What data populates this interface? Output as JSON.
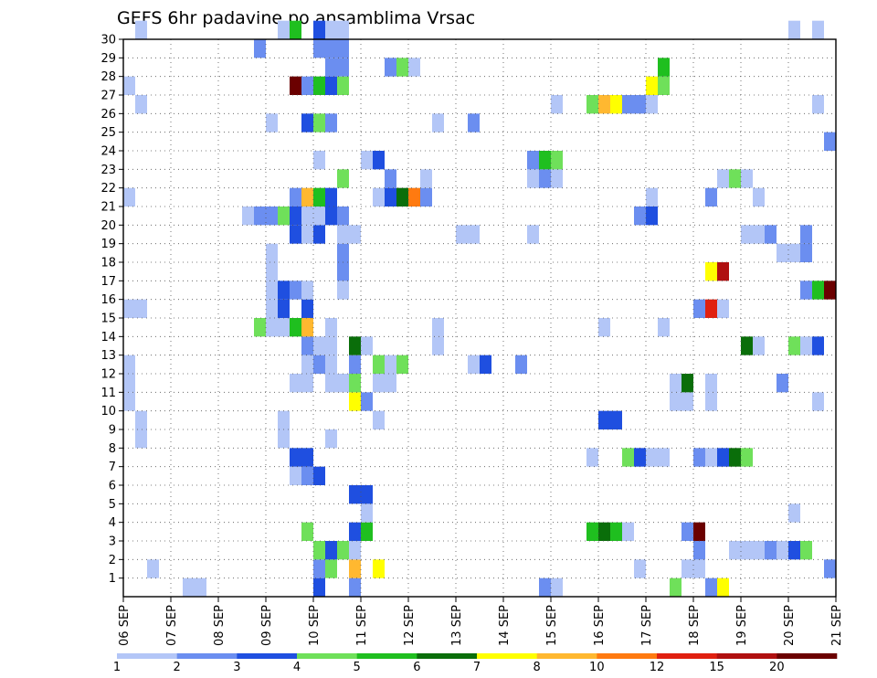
{
  "chart_data": {
    "type": "heatmap",
    "title": "GEFS 6hr padavine po ansamblima Vrsac",
    "xlabel": "",
    "ylabel": "",
    "x_tick_labels": [
      "06 SEP",
      "07 SEP",
      "08 SEP",
      "09 SEP",
      "10 SEP",
      "11 SEP",
      "12 SEP",
      "13 SEP",
      "14 SEP",
      "15 SEP",
      "16 SEP",
      "17 SEP",
      "18 SEP",
      "19 SEP",
      "20 SEP",
      "21 SEP"
    ],
    "x_unit": "6-hour step from 06 SEP",
    "xlim": [
      0,
      60
    ],
    "y_tick_labels": [
      "1",
      "2",
      "3",
      "4",
      "5",
      "6",
      "7",
      "8",
      "9",
      "10",
      "11",
      "12",
      "13",
      "14",
      "15",
      "16",
      "17",
      "18",
      "19",
      "20",
      "21",
      "22",
      "23",
      "24",
      "25",
      "26",
      "27",
      "28",
      "29",
      "30"
    ],
    "ylim": [
      0,
      30
    ],
    "grid": true,
    "colorbar": {
      "labels": [
        "1",
        "2",
        "3",
        "4",
        "5",
        "6",
        "7",
        "8",
        "10",
        "12",
        "15",
        "20"
      ],
      "colors": [
        "#b3c6f7",
        "#6b8ef0",
        "#1f4fe0",
        "#6fe05a",
        "#1fbf1f",
        "#0a6e0a",
        "#ffff00",
        "#ffb830",
        "#ff7a10",
        "#e02010",
        "#b01010",
        "#6b0000"
      ]
    },
    "cells": [
      [
        5,
        0,
        0
      ],
      [
        6,
        0,
        0
      ],
      [
        16,
        0,
        2
      ],
      [
        19,
        0,
        1
      ],
      [
        35,
        0,
        1
      ],
      [
        36,
        0,
        0
      ],
      [
        46,
        0,
        3
      ],
      [
        49,
        0,
        1
      ],
      [
        50,
        0,
        6
      ],
      [
        2,
        1,
        0
      ],
      [
        16,
        1,
        1
      ],
      [
        17,
        1,
        3
      ],
      [
        19,
        1,
        7
      ],
      [
        21,
        1,
        6
      ],
      [
        43,
        1,
        0
      ],
      [
        47,
        1,
        0
      ],
      [
        48,
        1,
        0
      ],
      [
        59,
        1,
        1
      ],
      [
        16,
        2,
        3
      ],
      [
        17,
        2,
        2
      ],
      [
        18,
        2,
        3
      ],
      [
        19,
        2,
        0
      ],
      [
        48,
        2,
        1
      ],
      [
        51,
        2,
        0
      ],
      [
        52,
        2,
        0
      ],
      [
        53,
        2,
        0
      ],
      [
        54,
        2,
        1
      ],
      [
        55,
        2,
        0
      ],
      [
        56,
        2,
        2
      ],
      [
        57,
        2,
        3
      ],
      [
        15,
        3,
        3
      ],
      [
        19,
        3,
        2
      ],
      [
        20,
        3,
        4
      ],
      [
        39,
        3,
        4
      ],
      [
        40,
        3,
        5
      ],
      [
        41,
        3,
        4
      ],
      [
        42,
        3,
        0
      ],
      [
        47,
        3,
        1
      ],
      [
        48,
        3,
        11
      ],
      [
        20,
        4,
        0
      ],
      [
        56,
        4,
        0
      ],
      [
        19,
        5,
        2
      ],
      [
        20,
        5,
        2
      ],
      [
        14,
        6,
        0
      ],
      [
        15,
        6,
        1
      ],
      [
        16,
        6,
        2
      ],
      [
        14,
        7,
        2
      ],
      [
        15,
        7,
        2
      ],
      [
        39,
        7,
        0
      ],
      [
        42,
        7,
        3
      ],
      [
        43,
        7,
        2
      ],
      [
        44,
        7,
        0
      ],
      [
        45,
        7,
        0
      ],
      [
        48,
        7,
        1
      ],
      [
        49,
        7,
        0
      ],
      [
        50,
        7,
        2
      ],
      [
        51,
        7,
        5
      ],
      [
        52,
        7,
        3
      ],
      [
        1,
        8,
        0
      ],
      [
        13,
        8,
        0
      ],
      [
        17,
        8,
        0
      ],
      [
        1,
        9,
        0
      ],
      [
        13,
        9,
        0
      ],
      [
        21,
        9,
        0
      ],
      [
        40,
        9,
        2
      ],
      [
        41,
        9,
        2
      ],
      [
        0,
        10,
        0
      ],
      [
        19,
        10,
        6
      ],
      [
        20,
        10,
        1
      ],
      [
        46,
        10,
        0
      ],
      [
        47,
        10,
        0
      ],
      [
        49,
        10,
        0
      ],
      [
        58,
        10,
        0
      ],
      [
        0,
        11,
        0
      ],
      [
        14,
        11,
        0
      ],
      [
        15,
        11,
        0
      ],
      [
        17,
        11,
        0
      ],
      [
        18,
        11,
        0
      ],
      [
        19,
        11,
        3
      ],
      [
        21,
        11,
        0
      ],
      [
        22,
        11,
        0
      ],
      [
        46,
        11,
        0
      ],
      [
        47,
        11,
        5
      ],
      [
        49,
        11,
        0
      ],
      [
        55,
        11,
        1
      ],
      [
        0,
        12,
        0
      ],
      [
        15,
        12,
        0
      ],
      [
        16,
        12,
        1
      ],
      [
        17,
        12,
        0
      ],
      [
        19,
        12,
        1
      ],
      [
        21,
        12,
        3
      ],
      [
        22,
        12,
        0
      ],
      [
        23,
        12,
        3
      ],
      [
        29,
        12,
        0
      ],
      [
        30,
        12,
        2
      ],
      [
        33,
        12,
        1
      ],
      [
        15,
        13,
        1
      ],
      [
        16,
        13,
        0
      ],
      [
        17,
        13,
        0
      ],
      [
        19,
        13,
        5
      ],
      [
        20,
        13,
        0
      ],
      [
        26,
        13,
        0
      ],
      [
        52,
        13,
        5
      ],
      [
        53,
        13,
        0
      ],
      [
        56,
        13,
        3
      ],
      [
        57,
        13,
        0
      ],
      [
        58,
        13,
        2
      ],
      [
        11,
        14,
        3
      ],
      [
        12,
        14,
        0
      ],
      [
        13,
        14,
        0
      ],
      [
        14,
        14,
        4
      ],
      [
        15,
        14,
        7
      ],
      [
        17,
        14,
        0
      ],
      [
        26,
        14,
        0
      ],
      [
        40,
        14,
        0
      ],
      [
        45,
        14,
        0
      ],
      [
        0,
        15,
        0
      ],
      [
        1,
        15,
        0
      ],
      [
        12,
        15,
        0
      ],
      [
        13,
        15,
        2
      ],
      [
        15,
        15,
        2
      ],
      [
        48,
        15,
        1
      ],
      [
        49,
        15,
        9
      ],
      [
        50,
        15,
        0
      ],
      [
        12,
        16,
        0
      ],
      [
        13,
        16,
        2
      ],
      [
        14,
        16,
        1
      ],
      [
        15,
        16,
        0
      ],
      [
        18,
        16,
        0
      ],
      [
        57,
        16,
        1
      ],
      [
        58,
        16,
        4
      ],
      [
        59,
        16,
        11
      ],
      [
        12,
        17,
        0
      ],
      [
        18,
        17,
        1
      ],
      [
        49,
        17,
        6
      ],
      [
        50,
        17,
        10
      ],
      [
        12,
        18,
        0
      ],
      [
        18,
        18,
        1
      ],
      [
        55,
        18,
        0
      ],
      [
        56,
        18,
        0
      ],
      [
        57,
        18,
        1
      ],
      [
        14,
        19,
        2
      ],
      [
        15,
        19,
        0
      ],
      [
        16,
        19,
        2
      ],
      [
        18,
        19,
        0
      ],
      [
        19,
        19,
        0
      ],
      [
        28,
        19,
        0
      ],
      [
        29,
        19,
        0
      ],
      [
        34,
        19,
        0
      ],
      [
        52,
        19,
        0
      ],
      [
        53,
        19,
        0
      ],
      [
        54,
        19,
        1
      ],
      [
        57,
        19,
        1
      ],
      [
        10,
        20,
        0
      ],
      [
        11,
        20,
        1
      ],
      [
        12,
        20,
        1
      ],
      [
        13,
        20,
        3
      ],
      [
        14,
        20,
        2
      ],
      [
        15,
        20,
        0
      ],
      [
        16,
        20,
        0
      ],
      [
        17,
        20,
        2
      ],
      [
        18,
        20,
        1
      ],
      [
        43,
        20,
        1
      ],
      [
        44,
        20,
        2
      ],
      [
        0,
        21,
        0
      ],
      [
        14,
        21,
        1
      ],
      [
        15,
        21,
        7
      ],
      [
        16,
        21,
        4
      ],
      [
        17,
        21,
        2
      ],
      [
        21,
        21,
        0
      ],
      [
        22,
        21,
        2
      ],
      [
        23,
        21,
        5
      ],
      [
        24,
        21,
        8
      ],
      [
        25,
        21,
        1
      ],
      [
        44,
        21,
        0
      ],
      [
        49,
        21,
        1
      ],
      [
        53,
        21,
        0
      ],
      [
        18,
        22,
        3
      ],
      [
        22,
        22,
        1
      ],
      [
        25,
        22,
        0
      ],
      [
        34,
        22,
        0
      ],
      [
        35,
        22,
        1
      ],
      [
        36,
        22,
        0
      ],
      [
        50,
        22,
        0
      ],
      [
        51,
        22,
        3
      ],
      [
        52,
        22,
        0
      ],
      [
        60,
        22,
        6
      ],
      [
        16,
        23,
        0
      ],
      [
        20,
        23,
        0
      ],
      [
        21,
        23,
        2
      ],
      [
        34,
        23,
        1
      ],
      [
        35,
        23,
        4
      ],
      [
        36,
        23,
        3
      ],
      [
        59,
        24,
        1
      ],
      [
        60,
        24,
        3
      ],
      [
        12,
        25,
        0
      ],
      [
        15,
        25,
        2
      ],
      [
        16,
        25,
        3
      ],
      [
        17,
        25,
        1
      ],
      [
        26,
        25,
        0
      ],
      [
        29,
        25,
        1
      ],
      [
        1,
        26,
        0
      ],
      [
        36,
        26,
        0
      ],
      [
        39,
        26,
        3
      ],
      [
        40,
        26,
        7
      ],
      [
        41,
        26,
        6
      ],
      [
        42,
        26,
        1
      ],
      [
        43,
        26,
        1
      ],
      [
        44,
        26,
        0
      ],
      [
        58,
        26,
        0
      ],
      [
        0,
        27,
        0
      ],
      [
        14,
        27,
        11
      ],
      [
        15,
        27,
        1
      ],
      [
        16,
        27,
        4
      ],
      [
        17,
        27,
        2
      ],
      [
        18,
        27,
        3
      ],
      [
        44,
        27,
        6
      ],
      [
        45,
        27,
        3
      ],
      [
        17,
        28,
        1
      ],
      [
        18,
        28,
        1
      ],
      [
        22,
        28,
        1
      ],
      [
        23,
        28,
        3
      ],
      [
        24,
        28,
        0
      ],
      [
        45,
        28,
        4
      ],
      [
        11,
        29,
        1
      ],
      [
        16,
        29,
        1
      ],
      [
        17,
        29,
        1
      ],
      [
        18,
        29,
        1
      ],
      [
        1,
        30,
        0
      ],
      [
        13,
        30,
        0
      ],
      [
        14,
        30,
        4
      ],
      [
        16,
        30,
        2
      ],
      [
        17,
        30,
        0
      ],
      [
        18,
        30,
        0
      ],
      [
        56,
        30,
        0
      ],
      [
        58,
        30,
        0
      ]
    ]
  }
}
